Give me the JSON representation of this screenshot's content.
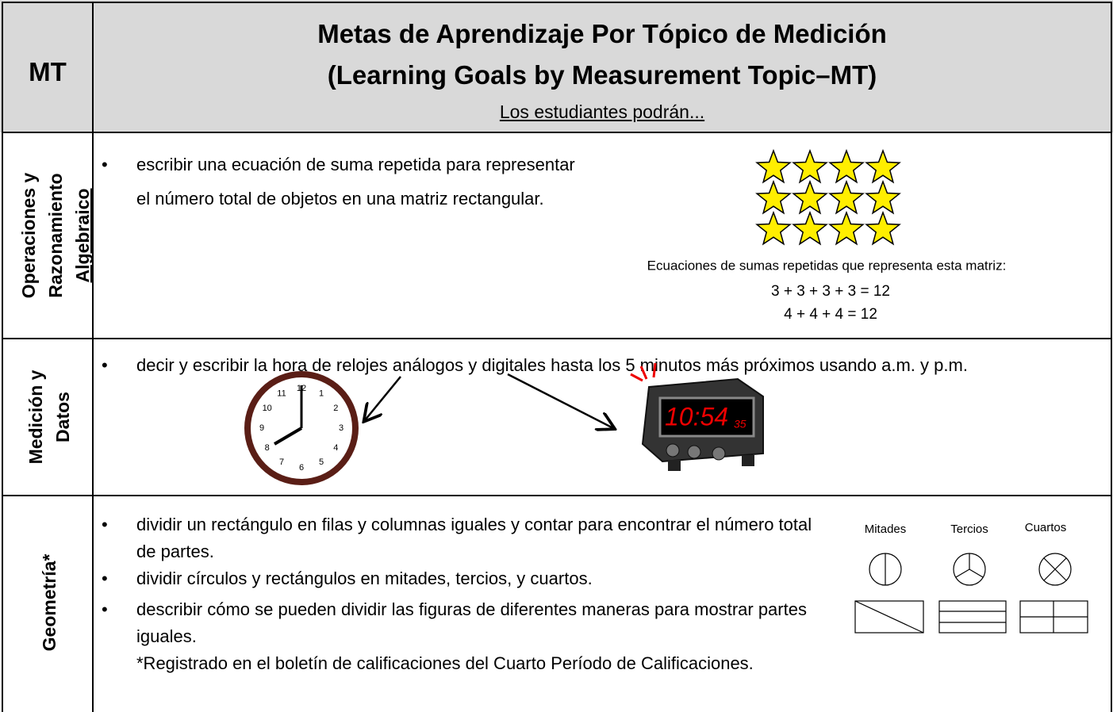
{
  "header": {
    "column_label": "MT",
    "title_lines": [
      "Metas de Aprendizaje Por Tópico de Medición",
      "(Learning Goals by Measurement Topic–MT)"
    ],
    "subtitle": "Los estudiantes podrán..."
  },
  "rows": [
    {
      "topic_lines": [
        "Operaciones y",
        "Razonamiento",
        "Algebraico"
      ],
      "goals": [
        "escribir una ecuación de suma repetida para representar el número total de objetos en una matriz rectangular."
      ],
      "figure": {
        "caption": "Ecuaciones de sumas repetidas que representa esta matriz:",
        "equations": [
          "3 + 3 + 3 + 3 = 12",
          "4 + 4 + 4 = 12"
        ]
      }
    },
    {
      "topic_lines": [
        "Medición y",
        "Datos"
      ],
      "goals": [
        "decir y escribir la hora de relojes análogos y digitales hasta los 5 minutos más próximos usando a.m. y p.m."
      ],
      "figure": {
        "clock_numerals": [
          "12",
          "1",
          "2",
          "3",
          "4",
          "5",
          "6",
          "7",
          "8",
          "9",
          "10",
          "11"
        ],
        "digital_time": "10:54",
        "digital_seconds": "35"
      }
    },
    {
      "topic_lines": [
        "Geometría*"
      ],
      "goals": [
        "dividir un rectángulo en filas y columnas iguales y contar para encontrar el número total de partes.",
        "dividir círculos y rectángulos en mitades, tercios, y cuartos.",
        "describir cómo se pueden dividir las figuras de diferentes maneras para mostrar partes iguales."
      ],
      "note": "*Registrado en el boletín de calificaciones del Cuarto Período de Calificaciones.",
      "figure": {
        "labels": [
          "Mitades",
          "Tercios",
          "Cuartos"
        ]
      }
    }
  ]
}
